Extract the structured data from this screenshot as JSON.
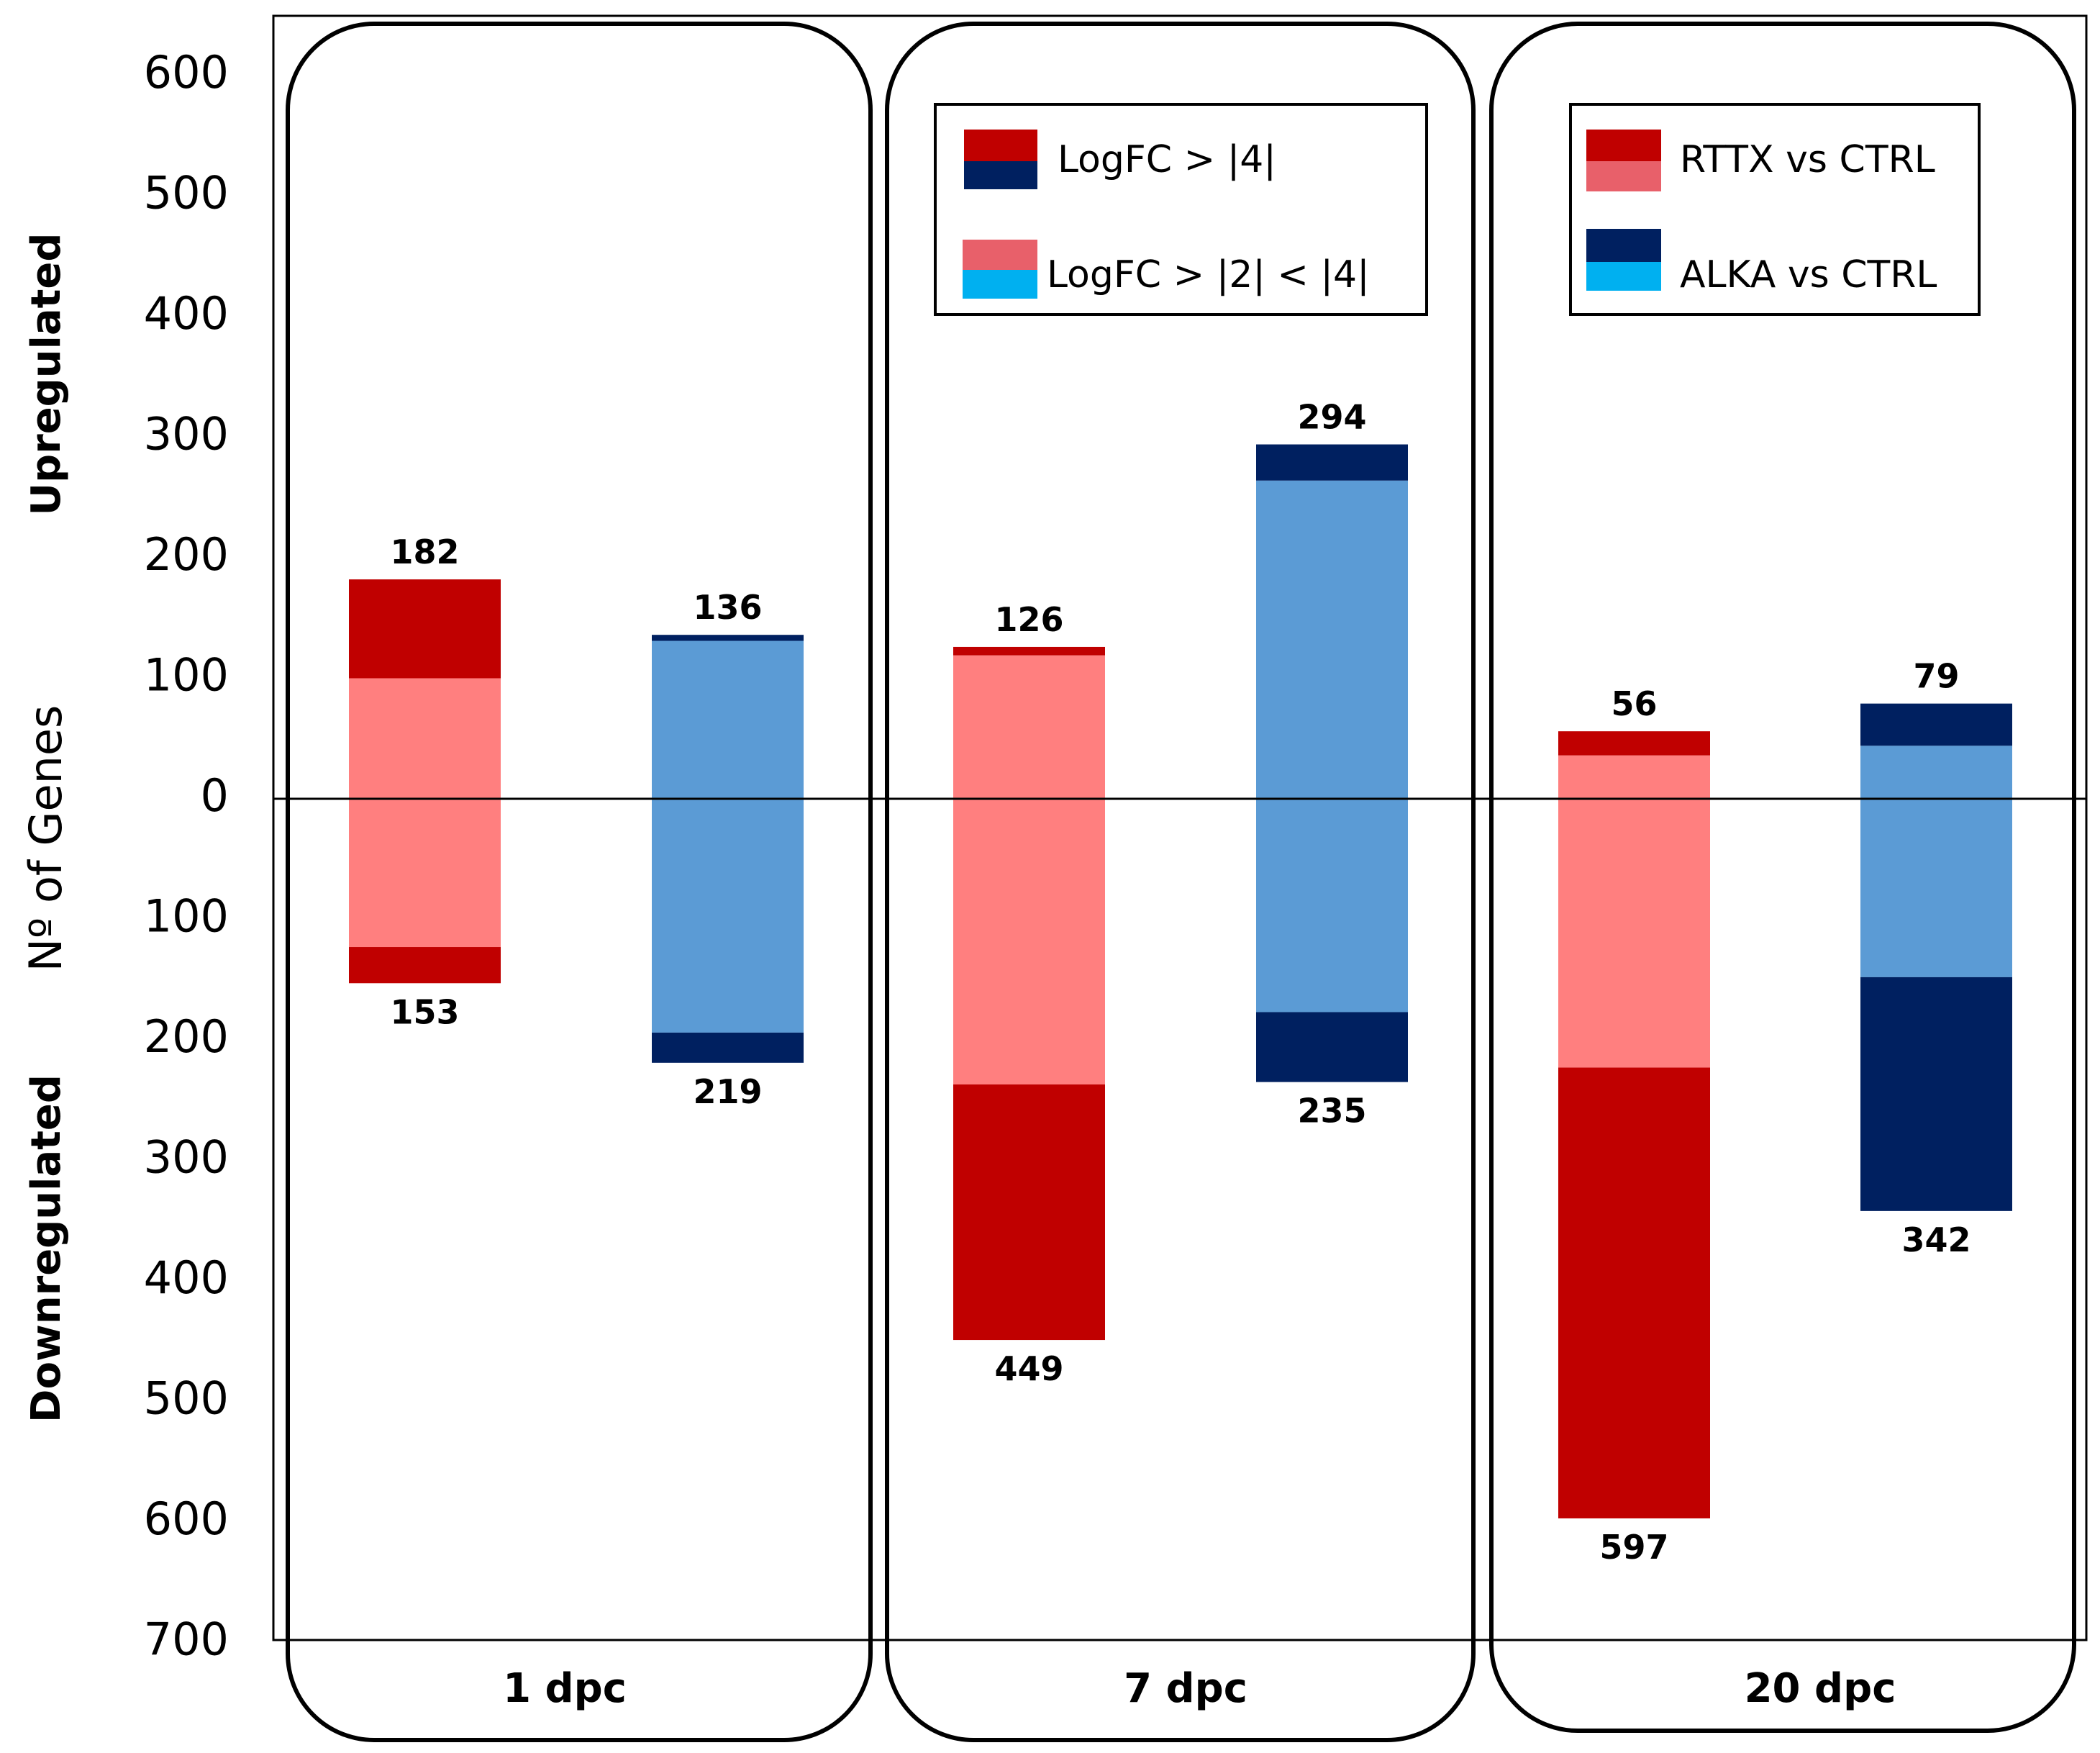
{
  "chart_data": {
    "type": "bar",
    "subtype": "diverging-stacked",
    "ylabel": "Nº of Genes",
    "ylabel_upper": "Upregulated",
    "ylabel_lower": "Downregulated",
    "ylim": [
      -700,
      600
    ],
    "tick_values": [
      600,
      500,
      400,
      300,
      200,
      100,
      0,
      -100,
      -200,
      -300,
      -400,
      -500,
      -600,
      -700
    ],
    "tick_labels": [
      "600",
      "500",
      "400",
      "300",
      "200",
      "100",
      "0",
      "100",
      "200",
      "300",
      "400",
      "500",
      "600",
      "700"
    ],
    "panels": [
      {
        "label": "1 dpc",
        "bars": [
          {
            "comparison": "RTTX vs CTRL",
            "up_total": 182,
            "up_lfc_gt4": 82,
            "up_lfc_2to4": 100,
            "down_total": 153,
            "down_lfc_gt4": 30,
            "down_lfc_2to4": 123
          },
          {
            "comparison": "ALKA vs CTRL",
            "up_total": 136,
            "up_lfc_gt4": 5,
            "up_lfc_2to4": 131,
            "down_total": 219,
            "down_lfc_gt4": 25,
            "down_lfc_2to4": 194
          }
        ]
      },
      {
        "label": "7 dpc",
        "bars": [
          {
            "comparison": "RTTX vs CTRL",
            "up_total": 126,
            "up_lfc_gt4": 7,
            "up_lfc_2to4": 119,
            "down_total": 449,
            "down_lfc_gt4": 212,
            "down_lfc_2to4": 237
          },
          {
            "comparison": "ALKA vs CTRL",
            "up_total": 294,
            "up_lfc_gt4": 30,
            "up_lfc_2to4": 264,
            "down_total": 235,
            "down_lfc_gt4": 58,
            "down_lfc_2to4": 177
          }
        ]
      },
      {
        "label": "20 dpc",
        "bars": [
          {
            "comparison": "RTTX vs CTRL",
            "up_total": 56,
            "up_lfc_gt4": 20,
            "up_lfc_2to4": 36,
            "down_total": 597,
            "down_lfc_gt4": 374,
            "down_lfc_2to4": 223
          },
          {
            "comparison": "ALKA vs CTRL",
            "up_total": 79,
            "up_lfc_gt4": 35,
            "up_lfc_2to4": 44,
            "down_total": 342,
            "down_lfc_gt4": 194,
            "down_lfc_2to4": 148
          }
        ]
      }
    ],
    "legend_threshold": {
      "items": [
        {
          "label": "LogFC > |4|",
          "colors": [
            "#C00000",
            "#002060"
          ]
        },
        {
          "label": "LogFC > |2| < |4|",
          "colors": [
            "#E8606A",
            "#00B0F0"
          ]
        }
      ]
    },
    "legend_comparison": {
      "items": [
        {
          "label": "RTTX vs CTRL",
          "colors": [
            "#C00000",
            "#E8606A"
          ]
        },
        {
          "label": "ALKA vs CTRL",
          "colors": [
            "#002060",
            "#00B0F0"
          ]
        }
      ]
    },
    "colors": {
      "rttx_strong": "#C00000",
      "rttx_moderate": "#FF7F7F",
      "alka_strong": "#002060",
      "alka_moderate": "#5B9BD5"
    }
  }
}
